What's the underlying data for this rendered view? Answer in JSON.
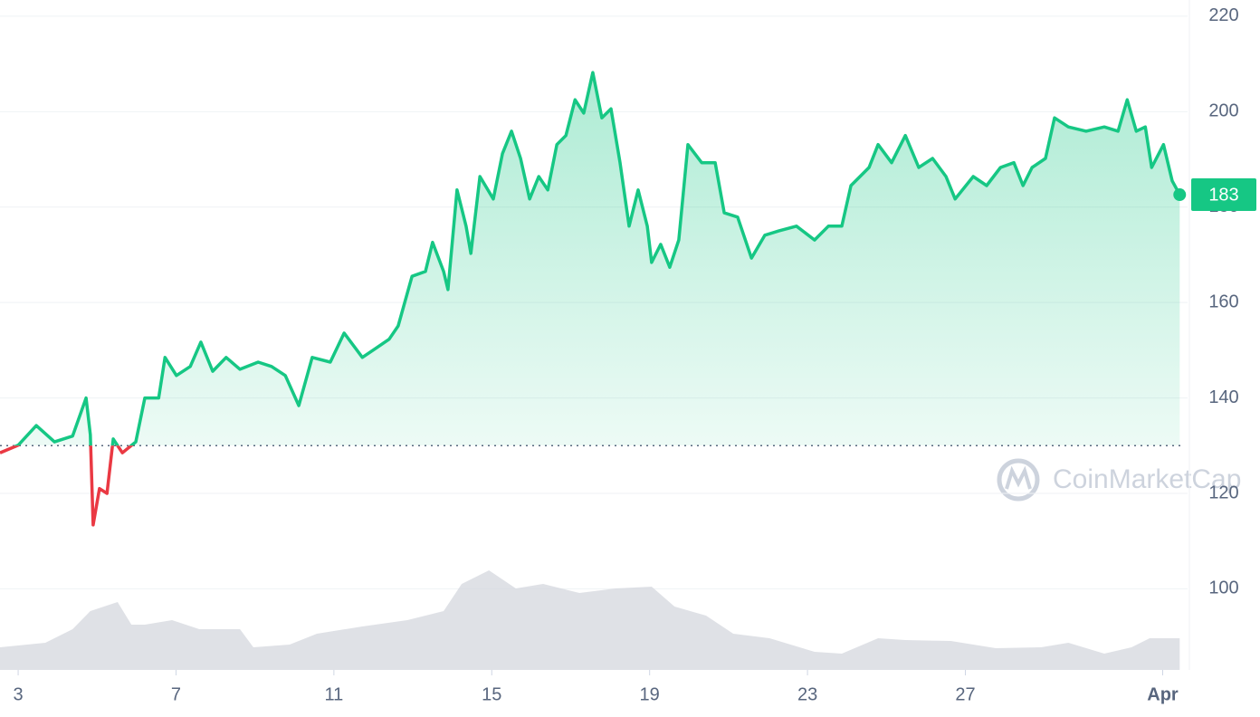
{
  "chart_data": {
    "type": "line",
    "x": [
      2.54,
      3.0,
      3.46,
      3.92,
      4.38,
      4.72,
      4.83,
      4.9,
      5.06,
      5.25,
      5.41,
      5.64,
      5.98,
      6.21,
      6.56,
      6.72,
      7.01,
      7.36,
      7.63,
      7.93,
      8.27,
      8.62,
      9.08,
      9.42,
      9.77,
      10.11,
      10.45,
      10.91,
      11.26,
      11.72,
      12.06,
      12.4,
      12.63,
      12.98,
      13.32,
      13.5,
      13.78,
      13.89,
      14.12,
      14.35,
      14.47,
      14.7,
      15.04,
      15.27,
      15.5,
      15.73,
      15.96,
      16.19,
      16.42,
      16.65,
      16.88,
      17.11,
      17.33,
      17.56,
      17.79,
      18.02,
      18.25,
      18.48,
      18.71,
      18.94,
      19.05,
      19.28,
      19.51,
      19.74,
      19.97,
      20.32,
      20.66,
      20.89,
      21.23,
      21.58,
      21.92,
      22.27,
      22.72,
      23.18,
      23.53,
      23.87,
      24.1,
      24.56,
      24.79,
      25.13,
      25.48,
      25.82,
      26.17,
      26.51,
      26.74,
      27.2,
      27.54,
      27.89,
      28.23,
      28.46,
      28.69,
      29.03,
      29.26,
      29.61,
      30.06,
      30.52,
      30.87,
      31.1,
      31.33,
      31.56,
      31.72,
      32.02,
      32.24,
      32.43
    ],
    "values": [
      128.5,
      130.1,
      134.2,
      130.8,
      132,
      140,
      132.3,
      113.4,
      121,
      120,
      131.4,
      128.5,
      130.8,
      140,
      140,
      148.5,
      144.7,
      146.6,
      151.7,
      145.6,
      148.5,
      146,
      147.5,
      146.6,
      144.7,
      138.4,
      148.5,
      147.5,
      153.6,
      148.5,
      150.4,
      152.3,
      155.1,
      165.5,
      166.5,
      172.6,
      166.5,
      162.7,
      183.6,
      176,
      170.3,
      186.4,
      181.7,
      191.2,
      195.9,
      190.2,
      181.7,
      186.4,
      183.6,
      193.1,
      195,
      202.5,
      199.7,
      208.2,
      198.7,
      200.6,
      189.3,
      176,
      183.6,
      176,
      168.4,
      172.2,
      167.4,
      173.1,
      193.1,
      189.3,
      189.3,
      178.8,
      177.9,
      169.3,
      174.1,
      175,
      176,
      173.1,
      176,
      176,
      184.5,
      188.3,
      193.1,
      189.3,
      195,
      188.3,
      190.2,
      186.4,
      181.7,
      186.4,
      184.5,
      188.3,
      189.3,
      184.5,
      188.3,
      190.2,
      198.7,
      196.8,
      195.9,
      196.8,
      195.9,
      202.5,
      195.9,
      196.8,
      188.3,
      193.1,
      185.5,
      182.6
    ],
    "up_color": "#16c784",
    "down_color": "#ea3943",
    "baseline": 130,
    "last_value_label": "183",
    "xlim": [
      2.54,
      32.47
    ],
    "xticks": [
      3,
      7,
      11,
      15,
      19,
      23,
      27,
      {
        "value": 32,
        "label": "Apr"
      }
    ],
    "ylim": [
      83,
      223.4
    ],
    "yticks": [
      100,
      120,
      140,
      160,
      180,
      200,
      220
    ],
    "grid": true,
    "volume": {
      "color": "#d1d4dc",
      "x": [
        2.54,
        3.69,
        4.38,
        4.83,
        5.52,
        5.87,
        6.21,
        6.9,
        7.59,
        8.62,
        8.96,
        9.88,
        10.57,
        11.72,
        12.86,
        13.78,
        14.24,
        14.93,
        15.61,
        16.3,
        17.22,
        18.14,
        19.05,
        19.63,
        20.43,
        21.12,
        22.04,
        23.18,
        23.87,
        24.79,
        25.48,
        26.63,
        27.77,
        28.92,
        29.61,
        30.52,
        31.21,
        31.67,
        32.43
      ],
      "values": [
        25,
        30,
        45,
        65,
        75,
        50,
        50,
        55,
        45,
        45,
        25,
        28,
        40,
        48,
        55,
        65,
        95,
        110,
        90,
        95,
        85,
        90,
        92,
        70,
        60,
        40,
        35,
        20,
        18,
        35,
        33,
        32,
        24,
        25,
        30,
        18,
        25,
        35,
        35
      ],
      "y2lim": [
        0,
        740
      ]
    },
    "watermark": "CoinMarketCap"
  }
}
